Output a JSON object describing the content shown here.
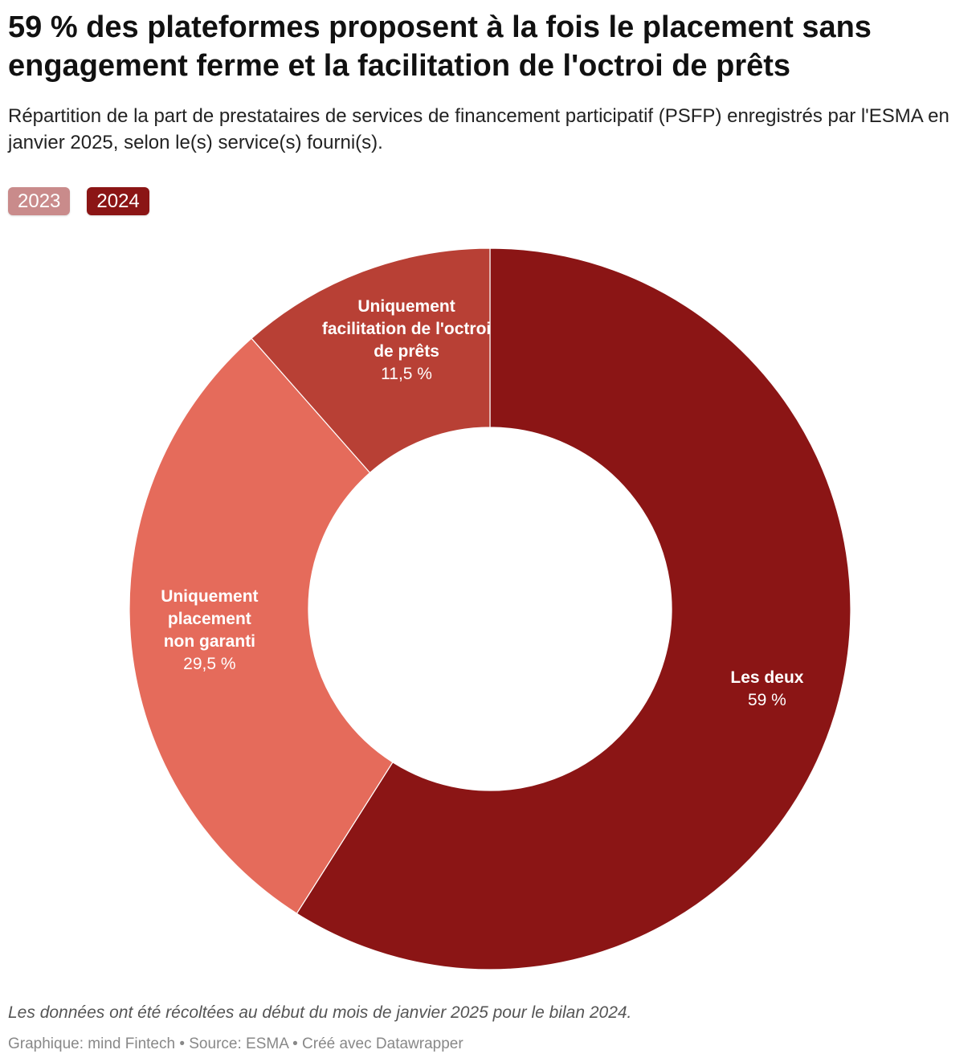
{
  "header": {
    "title": "59 % des plateformes proposent à la fois le placement sans engagement ferme et la facilitation de l'octroi de prêts",
    "subtitle": "Répartition de la part de prestataires de services de financement participatif (PSFP) enregistrés par l'ESMA en janvier 2025, selon le(s) service(s) fourni(s)."
  },
  "tabs": [
    {
      "label": "2023",
      "active": false
    },
    {
      "label": "2024",
      "active": true
    }
  ],
  "chart_data": {
    "type": "pie",
    "donut": true,
    "year": "2024",
    "slices": [
      {
        "name": "Les deux",
        "lines": [
          "Les deux"
        ],
        "value": 59,
        "value_label": "59 %",
        "color": "#8b1515"
      },
      {
        "name": "Uniquement placement non garanti",
        "lines": [
          "Uniquement",
          "placement",
          "non garanti"
        ],
        "value": 29.5,
        "value_label": "29,5 %",
        "color": "#e56b5b"
      },
      {
        "name": "Uniquement facilitation de l'octroi de prêts",
        "lines": [
          "Uniquement",
          "facilitation de l'octroi",
          "de prêts"
        ],
        "value": 11.5,
        "value_label": "11,5 %",
        "color": "#b84035"
      }
    ]
  },
  "footer": {
    "notes": "Les données ont été récoltées au début du mois de janvier 2025 pour le bilan 2024.",
    "credit": "Graphique: mind Fintech • Source: ESMA • Créé avec Datawrapper"
  }
}
